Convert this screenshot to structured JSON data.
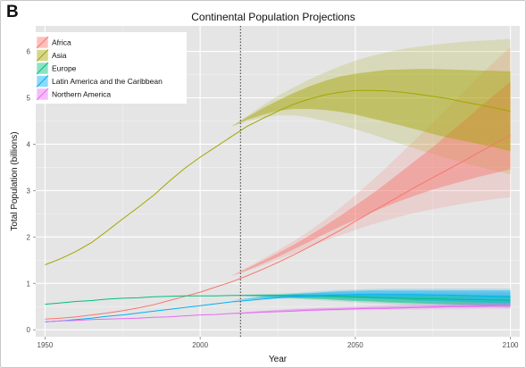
{
  "panel_label": "B",
  "chart_data": {
    "type": "line",
    "title": "Continental Population Projections",
    "xlabel": "Year",
    "ylabel": "Total Population (billions)",
    "xlim": [
      1947,
      2103
    ],
    "ylim": [
      -0.15,
      6.55
    ],
    "x_ticks": [
      1950,
      2000,
      2050,
      2100
    ],
    "y_ticks": [
      0,
      1,
      2,
      3,
      4,
      5,
      6
    ],
    "grid": true,
    "legend_position": "top-left",
    "reference_line": {
      "x": 2013,
      "style": "dotted"
    },
    "x": [
      1950,
      1955,
      1960,
      1965,
      1970,
      1975,
      1980,
      1985,
      1990,
      1995,
      2000,
      2005,
      2010,
      2015,
      2020,
      2025,
      2030,
      2035,
      2040,
      2045,
      2050,
      2055,
      2060,
      2065,
      2070,
      2075,
      2080,
      2085,
      2090,
      2095,
      2100
    ],
    "series": [
      {
        "name": "Africa",
        "color": "#f8766d",
        "values": [
          0.23,
          0.25,
          0.28,
          0.32,
          0.36,
          0.41,
          0.47,
          0.54,
          0.63,
          0.72,
          0.81,
          0.92,
          1.03,
          1.16,
          1.3,
          1.45,
          1.61,
          1.78,
          1.96,
          2.14,
          2.34,
          2.53,
          2.72,
          2.91,
          3.1,
          3.28,
          3.46,
          3.64,
          3.83,
          4.01,
          4.19
        ],
        "band80": [
          [
            1.16,
            1.16
          ],
          [
            1.28,
            1.32
          ],
          [
            1.42,
            1.48
          ],
          [
            1.57,
            1.65
          ],
          [
            1.73,
            1.83
          ],
          [
            1.89,
            2.02
          ],
          [
            2.06,
            2.23
          ],
          [
            2.22,
            2.45
          ],
          [
            2.37,
            2.68
          ],
          [
            2.52,
            2.91
          ],
          [
            2.66,
            3.16
          ],
          [
            2.79,
            3.42
          ],
          [
            2.91,
            3.68
          ],
          [
            3.02,
            3.94
          ],
          [
            3.12,
            4.22
          ],
          [
            3.21,
            4.5
          ],
          [
            3.3,
            4.79
          ],
          [
            3.38,
            5.07
          ],
          [
            3.46,
            5.35
          ]
        ],
        "band95": [
          [
            1.16,
            1.16
          ],
          [
            1.26,
            1.34
          ],
          [
            1.38,
            1.52
          ],
          [
            1.51,
            1.71
          ],
          [
            1.64,
            1.91
          ],
          [
            1.78,
            2.12
          ],
          [
            1.91,
            2.36
          ],
          [
            2.03,
            2.62
          ],
          [
            2.15,
            2.9
          ],
          [
            2.26,
            3.19
          ],
          [
            2.36,
            3.5
          ],
          [
            2.45,
            3.82
          ],
          [
            2.53,
            4.14
          ],
          [
            2.6,
            4.46
          ],
          [
            2.66,
            4.8
          ],
          [
            2.72,
            5.13
          ],
          [
            2.77,
            5.47
          ],
          [
            2.82,
            5.79
          ],
          [
            2.86,
            6.1
          ]
        ]
      },
      {
        "name": "Asia",
        "color": "#a3a500",
        "values": [
          1.4,
          1.53,
          1.69,
          1.88,
          2.13,
          2.39,
          2.64,
          2.9,
          3.2,
          3.48,
          3.72,
          3.94,
          4.16,
          4.38,
          4.55,
          4.71,
          4.86,
          4.97,
          5.06,
          5.12,
          5.16,
          5.16,
          5.15,
          5.12,
          5.08,
          5.03,
          4.98,
          4.91,
          4.85,
          4.78,
          4.71
        ],
        "band80": [
          [
            4.38,
            4.38
          ],
          [
            4.52,
            4.58
          ],
          [
            4.63,
            4.77
          ],
          [
            4.72,
            4.94
          ],
          [
            4.76,
            5.1
          ],
          [
            4.76,
            5.24
          ],
          [
            4.74,
            5.36
          ],
          [
            4.7,
            5.46
          ],
          [
            4.64,
            5.52
          ],
          [
            4.56,
            5.56
          ],
          [
            4.48,
            5.6
          ],
          [
            4.4,
            5.61
          ],
          [
            4.31,
            5.62
          ],
          [
            4.22,
            5.62
          ],
          [
            4.14,
            5.61
          ],
          [
            4.07,
            5.6
          ],
          [
            4.0,
            5.59
          ],
          [
            3.93,
            5.58
          ],
          [
            3.85,
            5.57
          ]
        ],
        "band95": [
          [
            4.38,
            4.38
          ],
          [
            4.49,
            4.6
          ],
          [
            4.57,
            4.83
          ],
          [
            4.62,
            5.04
          ],
          [
            4.62,
            5.22
          ],
          [
            4.58,
            5.39
          ],
          [
            4.5,
            5.54
          ],
          [
            4.42,
            5.68
          ],
          [
            4.32,
            5.8
          ],
          [
            4.22,
            5.9
          ],
          [
            4.11,
            5.98
          ],
          [
            4.0,
            6.05
          ],
          [
            3.89,
            6.1
          ],
          [
            3.79,
            6.14
          ],
          [
            3.69,
            6.18
          ],
          [
            3.6,
            6.21
          ],
          [
            3.51,
            6.23
          ],
          [
            3.43,
            6.25
          ],
          [
            3.35,
            6.27
          ]
        ]
      },
      {
        "name": "Europe",
        "color": "#00bf7d",
        "values": [
          0.55,
          0.58,
          0.61,
          0.63,
          0.66,
          0.68,
          0.69,
          0.71,
          0.72,
          0.73,
          0.73,
          0.73,
          0.74,
          0.74,
          0.74,
          0.74,
          0.74,
          0.73,
          0.73,
          0.72,
          0.71,
          0.7,
          0.69,
          0.68,
          0.67,
          0.67,
          0.66,
          0.65,
          0.65,
          0.64,
          0.64
        ],
        "band80": [
          [
            0.74,
            0.74
          ],
          [
            0.73,
            0.75
          ],
          [
            0.72,
            0.76
          ],
          [
            0.71,
            0.76
          ],
          [
            0.69,
            0.76
          ],
          [
            0.67,
            0.76
          ],
          [
            0.66,
            0.76
          ],
          [
            0.64,
            0.76
          ],
          [
            0.62,
            0.76
          ],
          [
            0.61,
            0.75
          ],
          [
            0.59,
            0.75
          ],
          [
            0.58,
            0.75
          ],
          [
            0.57,
            0.75
          ],
          [
            0.56,
            0.74
          ],
          [
            0.55,
            0.74
          ],
          [
            0.54,
            0.74
          ],
          [
            0.53,
            0.74
          ],
          [
            0.53,
            0.74
          ],
          [
            0.52,
            0.74
          ]
        ],
        "band95": [
          [
            0.74,
            0.74
          ],
          [
            0.72,
            0.76
          ],
          [
            0.7,
            0.77
          ],
          [
            0.69,
            0.78
          ],
          [
            0.67,
            0.79
          ],
          [
            0.65,
            0.79
          ],
          [
            0.63,
            0.8
          ],
          [
            0.61,
            0.8
          ],
          [
            0.59,
            0.8
          ],
          [
            0.57,
            0.8
          ],
          [
            0.56,
            0.8
          ],
          [
            0.54,
            0.8
          ],
          [
            0.53,
            0.8
          ],
          [
            0.52,
            0.8
          ],
          [
            0.51,
            0.8
          ],
          [
            0.5,
            0.8
          ],
          [
            0.49,
            0.8
          ],
          [
            0.48,
            0.8
          ],
          [
            0.47,
            0.8
          ]
        ]
      },
      {
        "name": "Latin America and the Caribbean",
        "color": "#00b0f6",
        "values": [
          0.17,
          0.19,
          0.22,
          0.25,
          0.29,
          0.32,
          0.36,
          0.4,
          0.44,
          0.48,
          0.52,
          0.56,
          0.6,
          0.63,
          0.66,
          0.69,
          0.71,
          0.73,
          0.74,
          0.75,
          0.76,
          0.76,
          0.76,
          0.76,
          0.76,
          0.75,
          0.75,
          0.74,
          0.73,
          0.72,
          0.71
        ],
        "band80": [
          [
            0.63,
            0.63
          ],
          [
            0.65,
            0.67
          ],
          [
            0.68,
            0.71
          ],
          [
            0.69,
            0.74
          ],
          [
            0.7,
            0.77
          ],
          [
            0.7,
            0.79
          ],
          [
            0.7,
            0.81
          ],
          [
            0.69,
            0.83
          ],
          [
            0.68,
            0.84
          ],
          [
            0.67,
            0.85
          ],
          [
            0.66,
            0.85
          ],
          [
            0.65,
            0.85
          ],
          [
            0.63,
            0.85
          ],
          [
            0.62,
            0.85
          ],
          [
            0.61,
            0.85
          ],
          [
            0.6,
            0.85
          ],
          [
            0.59,
            0.85
          ],
          [
            0.58,
            0.85
          ],
          [
            0.57,
            0.85
          ]
        ],
        "band95": [
          [
            0.63,
            0.63
          ],
          [
            0.64,
            0.68
          ],
          [
            0.66,
            0.72
          ],
          [
            0.67,
            0.76
          ],
          [
            0.67,
            0.79
          ],
          [
            0.67,
            0.82
          ],
          [
            0.66,
            0.84
          ],
          [
            0.65,
            0.86
          ],
          [
            0.64,
            0.87
          ],
          [
            0.62,
            0.88
          ],
          [
            0.61,
            0.89
          ],
          [
            0.59,
            0.89
          ],
          [
            0.58,
            0.89
          ],
          [
            0.56,
            0.89
          ],
          [
            0.55,
            0.89
          ],
          [
            0.54,
            0.89
          ],
          [
            0.53,
            0.89
          ],
          [
            0.52,
            0.89
          ],
          [
            0.51,
            0.89
          ]
        ]
      },
      {
        "name": "Northern America",
        "color": "#e76bf3",
        "values": [
          0.17,
          0.19,
          0.2,
          0.22,
          0.23,
          0.24,
          0.25,
          0.27,
          0.28,
          0.3,
          0.32,
          0.33,
          0.35,
          0.36,
          0.38,
          0.39,
          0.4,
          0.42,
          0.43,
          0.44,
          0.45,
          0.46,
          0.46,
          0.47,
          0.48,
          0.49,
          0.5,
          0.5,
          0.51,
          0.52,
          0.52
        ],
        "band80": [
          [
            0.36,
            0.36
          ],
          [
            0.37,
            0.38
          ],
          [
            0.38,
            0.4
          ],
          [
            0.4,
            0.42
          ],
          [
            0.41,
            0.44
          ],
          [
            0.42,
            0.45
          ],
          [
            0.43,
            0.46
          ],
          [
            0.44,
            0.47
          ],
          [
            0.44,
            0.48
          ],
          [
            0.45,
            0.49
          ],
          [
            0.46,
            0.5
          ],
          [
            0.46,
            0.51
          ],
          [
            0.47,
            0.52
          ],
          [
            0.47,
            0.53
          ],
          [
            0.48,
            0.54
          ],
          [
            0.48,
            0.55
          ],
          [
            0.48,
            0.56
          ],
          [
            0.49,
            0.57
          ],
          [
            0.49,
            0.58
          ]
        ],
        "band95": [
          [
            0.36,
            0.36
          ],
          [
            0.37,
            0.39
          ],
          [
            0.37,
            0.41
          ],
          [
            0.38,
            0.43
          ],
          [
            0.39,
            0.45
          ],
          [
            0.4,
            0.46
          ],
          [
            0.41,
            0.48
          ],
          [
            0.41,
            0.49
          ],
          [
            0.42,
            0.51
          ],
          [
            0.42,
            0.52
          ],
          [
            0.43,
            0.54
          ],
          [
            0.43,
            0.55
          ],
          [
            0.43,
            0.57
          ],
          [
            0.44,
            0.58
          ],
          [
            0.44,
            0.59
          ],
          [
            0.44,
            0.6
          ],
          [
            0.45,
            0.61
          ],
          [
            0.45,
            0.62
          ],
          [
            0.45,
            0.63
          ]
        ]
      }
    ]
  }
}
